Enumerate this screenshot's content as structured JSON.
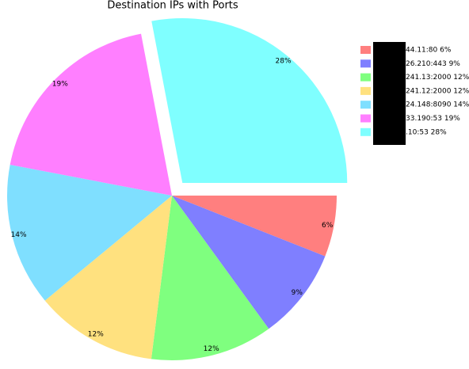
{
  "chart_data": {
    "type": "pie",
    "title": "Destination IPs with Ports",
    "categories": [
      "44.11:80 6%",
      "26.210:443 9%",
      "241.13:2000 12%",
      "241.12:2000 12%",
      "24.148:8090 14%",
      "33.190:53 19%",
      ".10:53 28%"
    ],
    "values": [
      6,
      9,
      12,
      12,
      14,
      19,
      28
    ],
    "value_labels": [
      "6%",
      "9%",
      "12%",
      "12%",
      "14%",
      "19%",
      "28%"
    ],
    "colors": [
      "#ff7f7f",
      "#7f7fff",
      "#7fff7f",
      "#ffe17f",
      "#7fdfff",
      "#ff7fff",
      "#7fffff"
    ],
    "explode": [
      0,
      0,
      0,
      0,
      0,
      0,
      0.1
    ],
    "legend": "upper right"
  }
}
